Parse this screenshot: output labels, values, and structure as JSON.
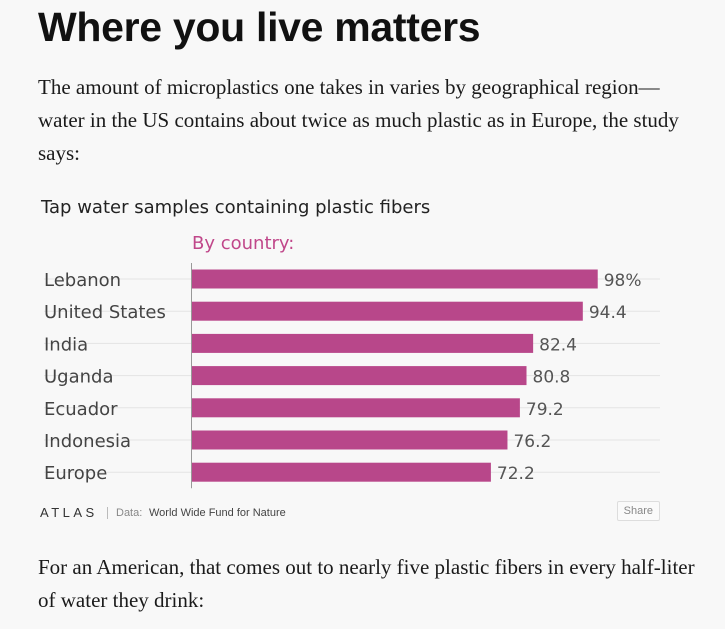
{
  "article": {
    "headline": "Where you live matters",
    "intro": "The amount of microplastics one takes in varies by geographical region—water in the US contains about twice as much plastic as in Europe, the study says:",
    "outro": "For an American, that comes out to nearly five plastic fibers in every half-liter of water they drink:"
  },
  "chart_data": {
    "type": "bar",
    "orientation": "horizontal",
    "title": "Tap water samples containing plastic fibers",
    "subtitle": "By country:",
    "categories": [
      "Lebanon",
      "United States",
      "India",
      "Uganda",
      "Ecuador",
      "Indonesia",
      "Europe"
    ],
    "values": [
      98,
      94.4,
      82.4,
      80.8,
      79.2,
      76.2,
      72.2
    ],
    "value_labels": [
      "98%",
      "94.4",
      "82.4",
      "80.8",
      "79.2",
      "76.2",
      "72.2"
    ],
    "xlim": [
      0,
      100
    ],
    "grid": true,
    "bar_color": "#b8478a"
  },
  "footer": {
    "logo": "ATLAS",
    "source_label": "Data:",
    "source": "World Wide Fund for Nature",
    "share_label": "Share"
  }
}
